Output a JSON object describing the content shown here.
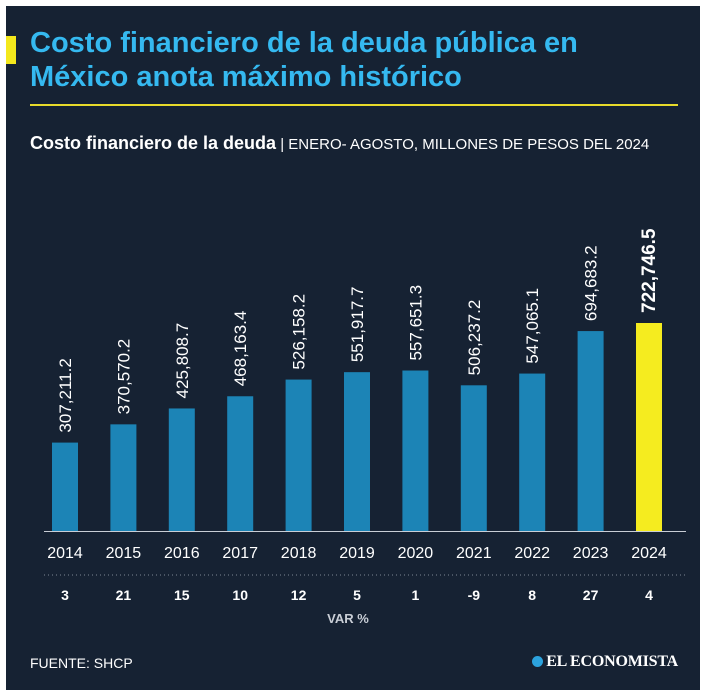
{
  "title": "Costo financiero de la deuda pública en México anota máximo histórico",
  "subtitle_main": "Costo financiero de la deuda",
  "subtitle_sep": " | ",
  "subtitle_rest": "ENERO- AGOSTO, MILLONES DE PESOS DEL 2024",
  "source": "FUENTE: SHCP",
  "brand": "EL ECONOMISTA",
  "colors": {
    "background": "#162233",
    "title": "#35b9f0",
    "bar": "#1c84b6",
    "highlight_bar": "#f5ec1f",
    "text": "#ffffff"
  },
  "chart_data": {
    "type": "bar",
    "title": "Costo financiero de la deuda",
    "categories": [
      "2014",
      "2015",
      "2016",
      "2017",
      "2018",
      "2019",
      "2020",
      "2021",
      "2022",
      "2023",
      "2024"
    ],
    "values": [
      307211.2,
      370570.2,
      425808.7,
      468163.4,
      526158.2,
      551917.7,
      557651.3,
      506237.2,
      547065.1,
      694683.2,
      722746.5
    ],
    "value_labels": [
      "307,211.2",
      "370,570.2",
      "425,808.7",
      "468,163.4",
      "526,158.2",
      "551,917.7",
      "557,651.3",
      "506,237.2",
      "547,065.1",
      "694,683.2",
      "722,746.5"
    ],
    "highlight_category": "2024",
    "var_label": "VAR %",
    "var_values": [
      "3",
      "21",
      "15",
      "10",
      "12",
      "5",
      "1",
      "-9",
      "8",
      "27",
      "4"
    ],
    "ylim": [
      0,
      722746.5
    ],
    "grid": false,
    "legend": "none"
  }
}
